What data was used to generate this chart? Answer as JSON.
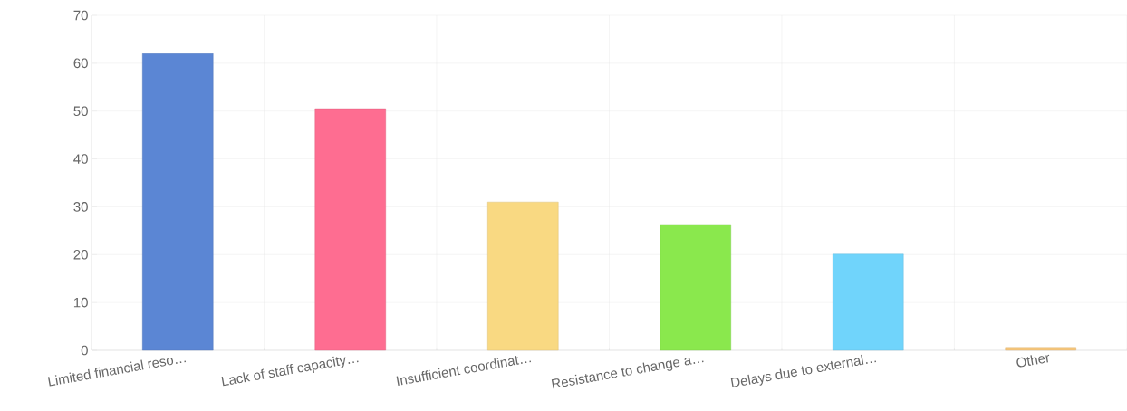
{
  "chart_data": {
    "type": "bar",
    "categories": [
      "Limited financial reso…",
      "Lack of staff capacity…",
      "Insufficient coordinat…",
      "Resistance to change a…",
      "Delays due to external…",
      "Other"
    ],
    "values": [
      62,
      50.5,
      31,
      26.3,
      20.1,
      0.6
    ],
    "colors": [
      "#5b86d4",
      "#fe6d91",
      "#f9d982",
      "#8ae84d",
      "#70d4fb",
      "#f8c87c"
    ],
    "ylim": [
      0,
      70
    ],
    "yticks": [
      0,
      10,
      20,
      30,
      40,
      50,
      60,
      70
    ],
    "grid": true
  }
}
